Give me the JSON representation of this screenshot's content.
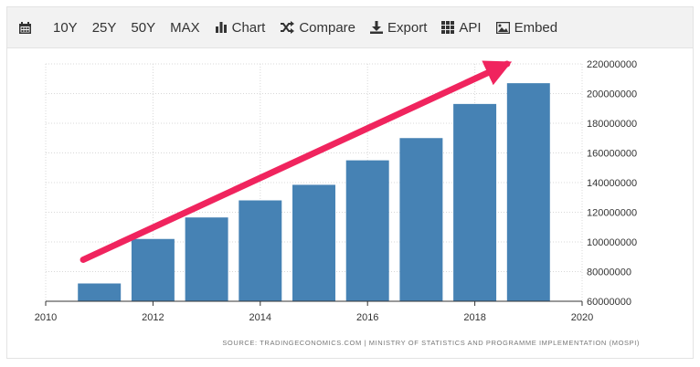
{
  "toolbar": {
    "items": [
      {
        "label": "",
        "icon": "calendar-icon"
      },
      {
        "label": "10Y"
      },
      {
        "label": "25Y"
      },
      {
        "label": "50Y"
      },
      {
        "label": "MAX"
      },
      {
        "label": "Chart",
        "icon": "bar-chart-icon"
      },
      {
        "label": "Compare",
        "icon": "shuffle-icon"
      },
      {
        "label": "Export",
        "icon": "download-icon"
      },
      {
        "label": "API",
        "icon": "grid-icon"
      },
      {
        "label": "Embed",
        "icon": "image-icon"
      }
    ]
  },
  "source_text": "SOURCE: TRADINGECONOMICS.COM | MINISTRY OF STATISTICS AND PROGRAMME IMPLEMENTATION (MOSPI)",
  "colors": {
    "bar": "#4682b4",
    "arrow": "#f0245e",
    "grid": "#d8d8d8"
  },
  "chart_data": {
    "type": "bar",
    "x": [
      2011,
      2012,
      2013,
      2014,
      2015,
      2016,
      2017,
      2018,
      2019
    ],
    "values": [
      72000000,
      102000000,
      116500000,
      128000000,
      138500000,
      155000000,
      170000000,
      193000000,
      207000000
    ],
    "xlim": [
      2010,
      2020
    ],
    "ylim": [
      60000000,
      220000000
    ],
    "x_ticks": [
      "2010",
      "2012",
      "2014",
      "2016",
      "2018",
      "2020"
    ],
    "y_ticks": [
      "60000000",
      "80000000",
      "100000000",
      "120000000",
      "140000000",
      "160000000",
      "180000000",
      "200000000",
      "220000000"
    ],
    "grid": true,
    "y_axis_side": "right",
    "annotation": {
      "type": "arrow",
      "from": [
        2010.7,
        88000000
      ],
      "to": [
        2018.6,
        220000000
      ]
    }
  }
}
